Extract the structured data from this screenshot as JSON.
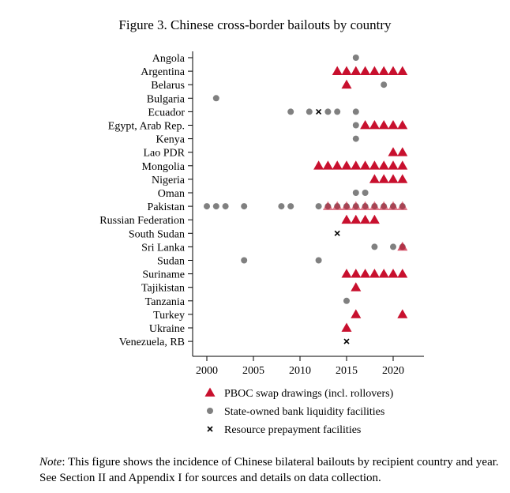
{
  "figure": {
    "title": "Figure 3. Chinese cross-border bailouts by country",
    "note_label": "Note",
    "note_text": ": This figure shows the incidence of Chinese bilateral bailouts by recipient country and year. See Section II and Appendix I for sources and details on data collection."
  },
  "chart_data": {
    "type": "scatter",
    "title": "Figure 3. Chinese cross-border bailouts by country",
    "xlabel": "",
    "ylabel": "",
    "xlim": [
      1999,
      2023
    ],
    "x_ticks": [
      2000,
      2005,
      2010,
      2015,
      2020
    ],
    "grid": false,
    "legend_position": "bottom",
    "categories": [
      "Angola",
      "Argentina",
      "Belarus",
      "Bulgaria",
      "Ecuador",
      "Egypt, Arab Rep.",
      "Kenya",
      "Lao PDR",
      "Mongolia",
      "Nigeria",
      "Oman",
      "Pakistan",
      "Russian Federation",
      "South Sudan",
      "Sri Lanka",
      "Sudan",
      "Suriname",
      "Tajikistan",
      "Tanzania",
      "Turkey",
      "Ukraine",
      "Venezuela, RB"
    ],
    "series": [
      {
        "name": "State-owned bank liquidity facilities",
        "marker": "circle",
        "color": "#808080",
        "points": [
          {
            "country": "Angola",
            "years": [
              2016
            ]
          },
          {
            "country": "Belarus",
            "years": [
              2019
            ]
          },
          {
            "country": "Bulgaria",
            "years": [
              2001
            ]
          },
          {
            "country": "Ecuador",
            "years": [
              2009,
              2011,
              2013,
              2014,
              2016
            ]
          },
          {
            "country": "Egypt, Arab Rep.",
            "years": [
              2016
            ]
          },
          {
            "country": "Kenya",
            "years": [
              2016
            ]
          },
          {
            "country": "Oman",
            "years": [
              2016,
              2017
            ]
          },
          {
            "country": "Pakistan",
            "years": [
              2000,
              2001,
              2002,
              2004,
              2008,
              2009,
              2012,
              2013,
              2014,
              2015,
              2016,
              2017,
              2018,
              2019,
              2020,
              2021
            ]
          },
          {
            "country": "Sri Lanka",
            "years": [
              2018,
              2020,
              2021
            ]
          },
          {
            "country": "Sudan",
            "years": [
              2004,
              2012
            ]
          },
          {
            "country": "Tanzania",
            "years": [
              2015
            ]
          }
        ]
      },
      {
        "name": "PBOC swap drawings (incl. rollovers)",
        "marker": "triangle",
        "color": "#c8102e",
        "points": [
          {
            "country": "Argentina",
            "years": [
              2014,
              2015,
              2016,
              2017,
              2018,
              2019,
              2020,
              2021
            ]
          },
          {
            "country": "Belarus",
            "years": [
              2015
            ]
          },
          {
            "country": "Egypt, Arab Rep.",
            "years": [
              2017,
              2018,
              2019,
              2020,
              2021
            ]
          },
          {
            "country": "Lao PDR",
            "years": [
              2020,
              2021
            ]
          },
          {
            "country": "Mongolia",
            "years": [
              2012,
              2013,
              2014,
              2015,
              2016,
              2017,
              2018,
              2019,
              2020,
              2021
            ]
          },
          {
            "country": "Nigeria",
            "years": [
              2018,
              2019,
              2020,
              2021
            ]
          },
          {
            "country": "Pakistan",
            "years": [
              2013,
              2014,
              2015,
              2016,
              2017,
              2018,
              2019,
              2020,
              2021
            ]
          },
          {
            "country": "Russian Federation",
            "years": [
              2015,
              2016,
              2017,
              2018
            ]
          },
          {
            "country": "Sri Lanka",
            "years": [
              2021
            ]
          },
          {
            "country": "Suriname",
            "years": [
              2015,
              2016,
              2017,
              2018,
              2019,
              2020,
              2021
            ]
          },
          {
            "country": "Tajikistan",
            "years": [
              2016
            ]
          },
          {
            "country": "Turkey",
            "years": [
              2016,
              2021
            ]
          },
          {
            "country": "Ukraine",
            "years": [
              2015
            ]
          }
        ]
      },
      {
        "name": "Resource prepayment facilities",
        "marker": "x",
        "color": "#000000",
        "points": [
          {
            "country": "Ecuador",
            "years": [
              2012
            ]
          },
          {
            "country": "South Sudan",
            "years": [
              2014
            ]
          },
          {
            "country": "Venezuela, RB",
            "years": [
              2015
            ]
          }
        ]
      }
    ],
    "legend_order": [
      1,
      0,
      2
    ]
  }
}
